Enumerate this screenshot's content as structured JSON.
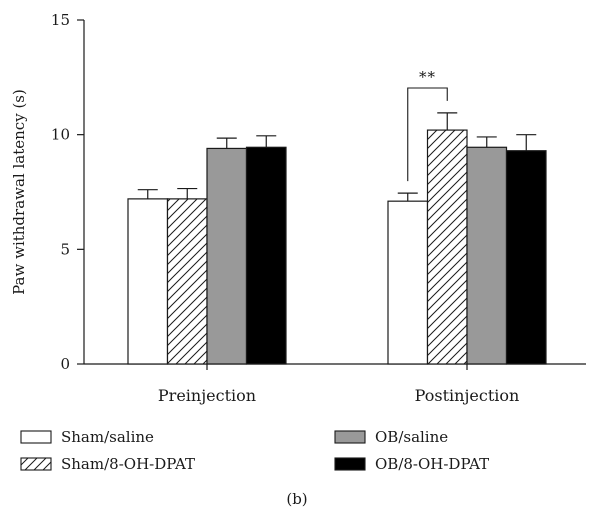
{
  "chart_data": {
    "type": "bar",
    "title": "",
    "xlabel": "",
    "ylabel": "Paw withdrawal latency (s)",
    "ylim": [
      0,
      15
    ],
    "yticks": [
      "0",
      "5",
      "10",
      "15"
    ],
    "grid": false,
    "legend_position": "bottom",
    "categories": [
      "Preinjection",
      "Postinjection"
    ],
    "series": [
      {
        "name": "Sham/saline",
        "pattern": "open",
        "values": [
          7.2,
          7.1
        ],
        "errors": [
          0.4,
          0.35
        ]
      },
      {
        "name": "Sham/8-OH-DPAT",
        "pattern": "hatched",
        "values": [
          7.2,
          10.2
        ],
        "errors": [
          0.45,
          0.75
        ]
      },
      {
        "name": "OB/saline",
        "pattern": "gray",
        "values": [
          9.4,
          9.45
        ],
        "errors": [
          0.45,
          0.45
        ]
      },
      {
        "name": "OB/8-OH-DPAT",
        "pattern": "black",
        "values": [
          9.45,
          9.3
        ],
        "errors": [
          0.5,
          0.7
        ]
      }
    ],
    "colors": {
      "open": "#ffffff",
      "gray": "#999999",
      "black": "#000000",
      "stroke": "#1a1a1a"
    },
    "annotations": [
      {
        "text": "**",
        "category": "Postinjection",
        "between_series": [
          0,
          1
        ]
      }
    ],
    "panel_label": "(b)"
  }
}
